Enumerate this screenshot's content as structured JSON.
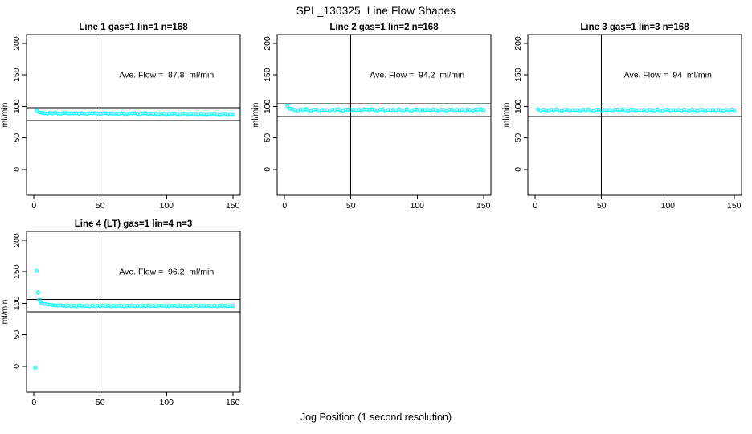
{
  "figure": {
    "title": "SPL_130325  Line Flow Shapes",
    "xlabel": "Jog Position (1 second resolution)"
  },
  "chart_data": {
    "type": "scatter",
    "title": "SPL_130325  Line Flow Shapes",
    "xlabel": "Jog Position (1 second resolution)",
    "ylabel": "ml/min",
    "layout": "2x3 grid, 4 panels used, no gridlines, no legend",
    "marker": "open-circle",
    "marker_color": "#00ffff",
    "axis_color": "#000000",
    "background_color": "#ffffff",
    "x_ticks": [
      0,
      50,
      100,
      150
    ],
    "y_ticks": [
      0,
      50,
      100,
      150,
      200
    ],
    "xlim": [
      -5.6,
      155.6
    ],
    "ylim": [
      -41,
      214
    ],
    "vertical_marker_x": 50,
    "panels": [
      {
        "title": "Line 1 gas=1 lin=1 n=168",
        "annotation": "Ave. Flow =  87.8  ml/min",
        "annotation_xy": [
          100,
          150
        ],
        "ave_flow": 87.8,
        "ref_lines_y": [
          97.8,
          77.8
        ],
        "x_start": 2,
        "x_step": 2,
        "y": [
          93.2,
          90.4,
          89.7,
          89.0,
          88.5,
          89.5,
          89.1,
          89.8,
          88.8,
          88.4,
          89.4,
          89.6,
          88.6,
          89.2,
          88.9,
          89.0,
          88.4,
          89.4,
          88.7,
          88.2,
          89.2,
          88.8,
          89.5,
          88.5,
          88.1,
          89.1,
          89.3,
          88.3,
          88.9,
          88.6,
          88.7,
          88.1,
          89.1,
          88.4,
          87.9,
          88.9,
          88.5,
          89.2,
          88.2,
          87.8,
          88.8,
          89.0,
          88.0,
          88.6,
          88.3,
          88.4,
          87.8,
          88.8,
          88.1,
          87.6,
          88.6,
          88.2,
          88.9,
          87.9,
          87.5,
          88.5,
          88.7,
          87.7,
          88.3,
          88.0,
          88.1,
          87.5,
          88.5,
          87.8,
          87.3,
          88.3,
          87.9,
          88.6,
          87.6,
          87.2,
          88.2,
          88.4,
          87.4,
          88.0,
          87.7
        ]
      },
      {
        "title": "Line 2 gas=1 lin=2 n=168",
        "annotation": "Ave. Flow =  94.2  ml/min",
        "annotation_xy": [
          100,
          150
        ],
        "ave_flow": 94.2,
        "ref_lines_y": [
          104.2,
          84.2
        ],
        "x_start": 2,
        "x_step": 2,
        "y": [
          100.1,
          96.6,
          95.3,
          94.4,
          93.7,
          95.1,
          94.5,
          95.5,
          94.1,
          93.5,
          94.9,
          95.2,
          93.8,
          94.6,
          94.2,
          94.4,
          93.7,
          95.1,
          94.5,
          95.5,
          94.1,
          93.5,
          94.9,
          95.2,
          93.8,
          94.6,
          94.2,
          94.8,
          93.9,
          95.3,
          95.1,
          94.5,
          95.5,
          94.1,
          93.5,
          94.9,
          95.2,
          93.8,
          94.6,
          94.2,
          94.8,
          93.9,
          95.3,
          94.4,
          93.7,
          95.5,
          94.1,
          93.5,
          94.9,
          95.2,
          93.8,
          94.6,
          94.2,
          94.8,
          93.9,
          95.3,
          94.4,
          93.7,
          95.1,
          94.5,
          93.5,
          94.9,
          95.2,
          93.8,
          94.6,
          94.2,
          94.8,
          93.9,
          95.3,
          94.4,
          93.7,
          95.1,
          94.5,
          95.5,
          94.1
        ]
      },
      {
        "title": "Line 3 gas=1 lin=3 n=168",
        "annotation": "Ave. Flow =  94  ml/min",
        "annotation_xy": [
          100,
          150
        ],
        "ave_flow": 94,
        "ref_lines_y": [
          104.0,
          84.0
        ],
        "x_start": 2,
        "x_step": 2,
        "y": [
          95.6,
          93.7,
          95.1,
          94.2,
          93.5,
          94.9,
          94.3,
          95.3,
          93.9,
          93.3,
          94.7,
          95.0,
          93.6,
          94.4,
          94.0,
          94.2,
          93.5,
          94.9,
          94.3,
          95.3,
          93.9,
          93.3,
          94.7,
          95.0,
          93.6,
          94.4,
          94.0,
          94.6,
          93.7,
          95.1,
          94.9,
          94.3,
          95.3,
          93.9,
          93.3,
          94.7,
          95.0,
          93.6,
          94.4,
          94.0,
          94.6,
          93.7,
          95.1,
          94.2,
          93.5,
          95.3,
          93.9,
          93.3,
          94.7,
          95.0,
          93.6,
          94.4,
          94.0,
          94.6,
          93.7,
          95.1,
          94.2,
          93.5,
          94.9,
          94.3,
          93.3,
          94.7,
          95.0,
          93.6,
          94.4,
          94.0,
          94.6,
          93.7,
          95.1,
          94.2,
          93.5,
          94.9,
          94.3,
          95.3,
          93.9
        ]
      },
      {
        "title": "Line 4 (LT) gas=1 lin=4 n=3",
        "annotation": "Ave. Flow =  96.2  ml/min",
        "annotation_xy": [
          100,
          150
        ],
        "ave_flow": 96.2,
        "ref_lines_y": [
          106.2,
          86.2
        ],
        "points": [
          [
            1,
            -2.0
          ],
          [
            2,
            151.0
          ],
          [
            3,
            117.0
          ],
          [
            4,
            106.0
          ],
          [
            5,
            102.0
          ],
          [
            6,
            100.0
          ],
          [
            8,
            99.0
          ],
          [
            10,
            98.4
          ],
          [
            12,
            97.8
          ],
          [
            14,
            97.2
          ],
          [
            16,
            96.8
          ],
          [
            18,
            96.5
          ],
          [
            20,
            96.9
          ],
          [
            22,
            96.2
          ],
          [
            24,
            95.8
          ],
          [
            26,
            96.4
          ],
          [
            28,
            95.6
          ],
          [
            30,
            96.0
          ],
          [
            32,
            95.3
          ],
          [
            34,
            96.6
          ],
          [
            36,
            95.9
          ],
          [
            38,
            95.5
          ],
          [
            40,
            96.1
          ],
          [
            42,
            95.4
          ],
          [
            44,
            96.3
          ],
          [
            46,
            95.7
          ],
          [
            48,
            96.0
          ],
          [
            50,
            95.5
          ],
          [
            52,
            96.2
          ],
          [
            54,
            95.8
          ],
          [
            56,
            96.5
          ],
          [
            58,
            95.3
          ],
          [
            60,
            96.0
          ],
          [
            62,
            95.6
          ],
          [
            64,
            96.3
          ],
          [
            66,
            95.9
          ],
          [
            68,
            95.4
          ],
          [
            70,
            96.1
          ],
          [
            72,
            95.7
          ],
          [
            74,
            96.4
          ],
          [
            76,
            95.5
          ],
          [
            78,
            96.0
          ],
          [
            80,
            95.8
          ],
          [
            82,
            96.2
          ],
          [
            84,
            95.4
          ],
          [
            86,
            96.6
          ],
          [
            88,
            95.7
          ],
          [
            90,
            96.1
          ],
          [
            92,
            95.5
          ],
          [
            94,
            96.3
          ],
          [
            96,
            95.8
          ],
          [
            98,
            96.0
          ],
          [
            100,
            95.4
          ],
          [
            102,
            96.2
          ],
          [
            104,
            95.9
          ],
          [
            106,
            96.5
          ],
          [
            108,
            95.6
          ],
          [
            110,
            96.1
          ],
          [
            112,
            95.7
          ],
          [
            114,
            96.3
          ],
          [
            116,
            95.5
          ],
          [
            118,
            96.0
          ],
          [
            120,
            95.8
          ],
          [
            122,
            96.4
          ],
          [
            124,
            95.6
          ],
          [
            126,
            96.1
          ],
          [
            128,
            95.9
          ],
          [
            130,
            95.5
          ],
          [
            132,
            96.2
          ],
          [
            134,
            95.7
          ],
          [
            136,
            96.0
          ],
          [
            138,
            95.6
          ],
          [
            140,
            96.3
          ],
          [
            142,
            95.8
          ],
          [
            144,
            96.1
          ],
          [
            146,
            95.6
          ],
          [
            148,
            95.9
          ],
          [
            150,
            95.7
          ]
        ]
      }
    ]
  }
}
